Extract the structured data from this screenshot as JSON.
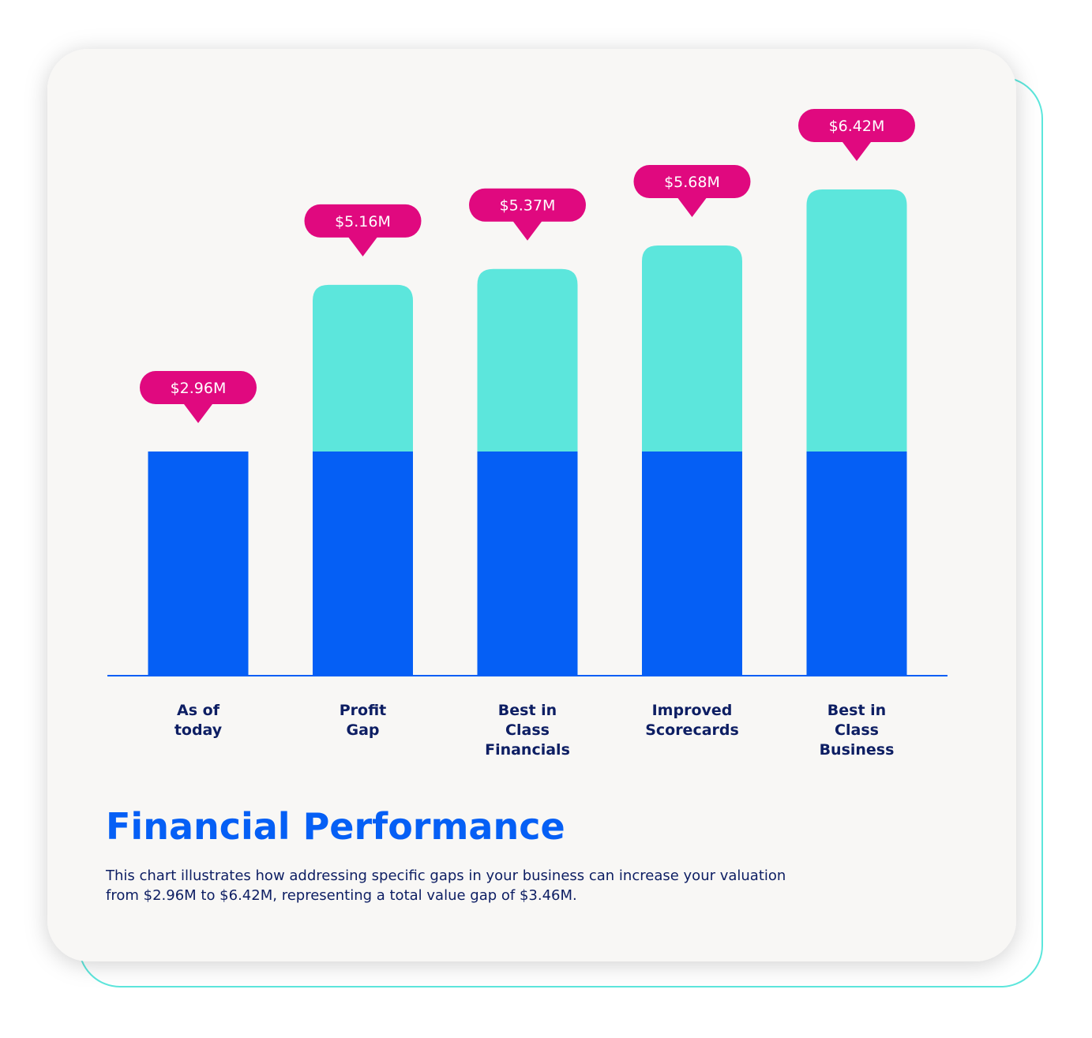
{
  "chart_data": {
    "type": "stacked-bar",
    "title": "Financial Performance",
    "description": "This chart illustrates how addressing specific gaps in your business can increase your valuation from $2.96M to $6.42M, representing a total value gap of $3.46M.",
    "categories": [
      "As of\ntoday",
      "Profit\nGap",
      "Best in\nClass\nFinancials",
      "Improved\nScorecards",
      "Best in\nClass\nBusiness"
    ],
    "series": [
      {
        "color": "#055ff5",
        "values": [
          2.96,
          2.96,
          2.96,
          2.96,
          2.96
        ]
      },
      {
        "color": "#5ce6dc",
        "values": [
          0,
          2.2,
          2.41,
          2.72,
          3.46
        ]
      }
    ],
    "totals": {
      "color": "#e0097f",
      "values": [
        2.96,
        5.16,
        5.37,
        5.68,
        6.42
      ],
      "value_labels": [
        "$2.96M",
        "$5.16M",
        "$5.37M",
        "$5.68M",
        "$6.42M"
      ]
    }
  }
}
